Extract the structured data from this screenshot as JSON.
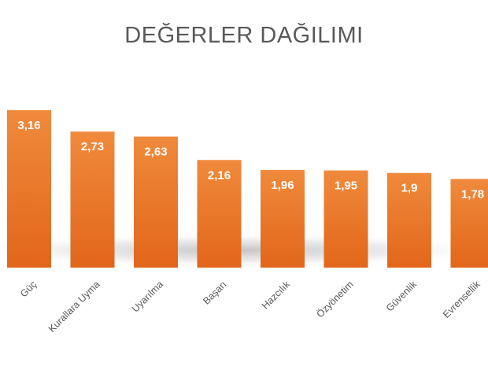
{
  "chart_data": {
    "type": "bar",
    "title": "DEĞERLER DAĞILIMI",
    "categories": [
      "Güç",
      "Kurallara Uyma",
      "Uyarılma",
      "Başarı",
      "Hazcılık",
      "Özyönetim",
      "Güvenlik",
      "Evrensellik"
    ],
    "values": [
      3.16,
      2.73,
      2.63,
      2.16,
      1.96,
      1.95,
      1.9,
      1.78
    ],
    "data_labels": [
      "3,16",
      "2,73",
      "2,63",
      "2,16",
      "1,96",
      "1,95",
      "1,9",
      "1,78"
    ],
    "bar_color": "#E8711F",
    "bar_color_light": "#F08A3C",
    "xlabel": "",
    "ylabel": "",
    "ylim": [
      0,
      3.5
    ],
    "grid": false,
    "legend": "none"
  }
}
